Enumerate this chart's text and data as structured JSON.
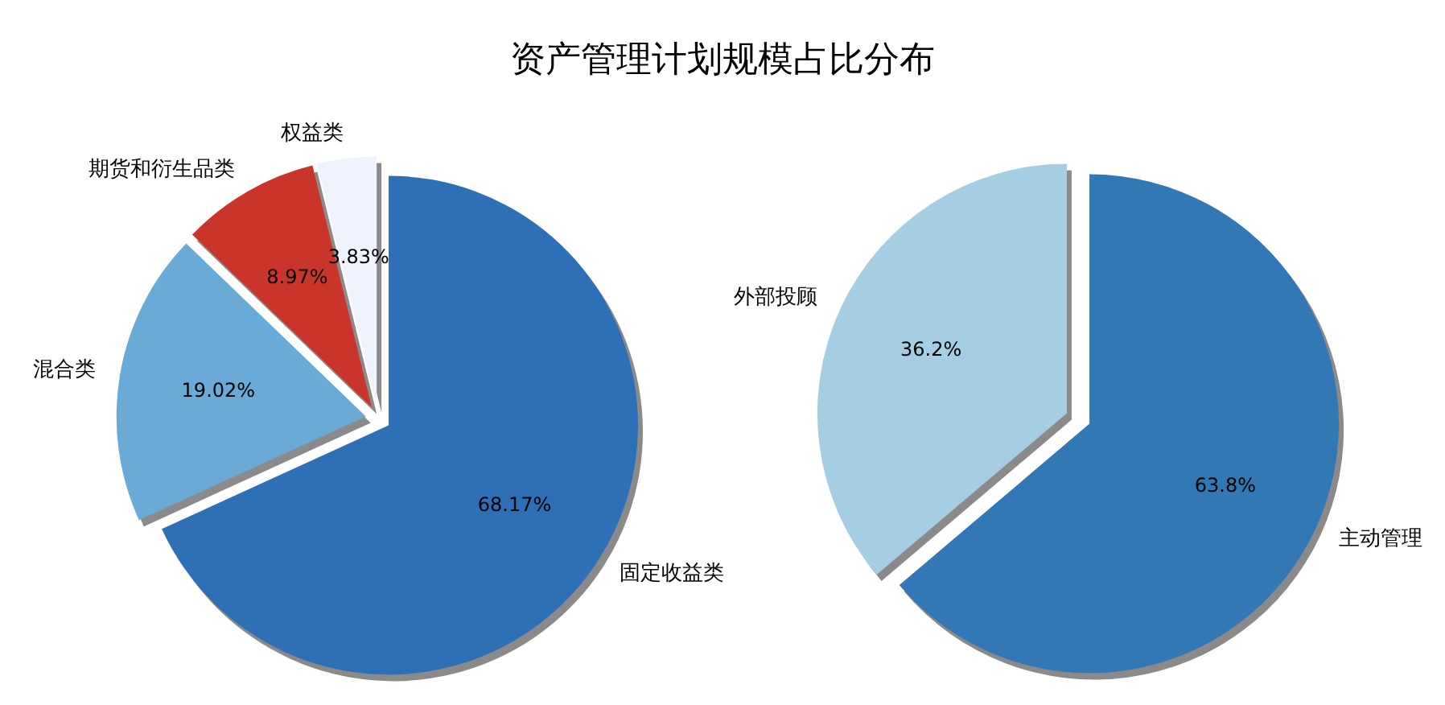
{
  "chart_data": [
    {
      "type": "pie",
      "title": "资产管理计划规模占比分布",
      "categories": [
        "权益类",
        "期货和衍生品类",
        "混合类",
        "固定收益类"
      ],
      "values": [
        3.83,
        8.97,
        19.02,
        68.17
      ],
      "colors": [
        "#eef3fd",
        "#c9352b",
        "#6aaad6",
        "#2e6fb5"
      ],
      "value_labels": [
        "3.83%",
        "8.97%",
        "19.02%",
        "68.17%"
      ]
    },
    {
      "type": "pie",
      "categories": [
        "外部投顾",
        "主动管理"
      ],
      "values": [
        36.2,
        63.8
      ],
      "colors": [
        "#a6cee3",
        "#3378b5"
      ],
      "value_labels": [
        "36.2%",
        "63.8%"
      ]
    }
  ]
}
